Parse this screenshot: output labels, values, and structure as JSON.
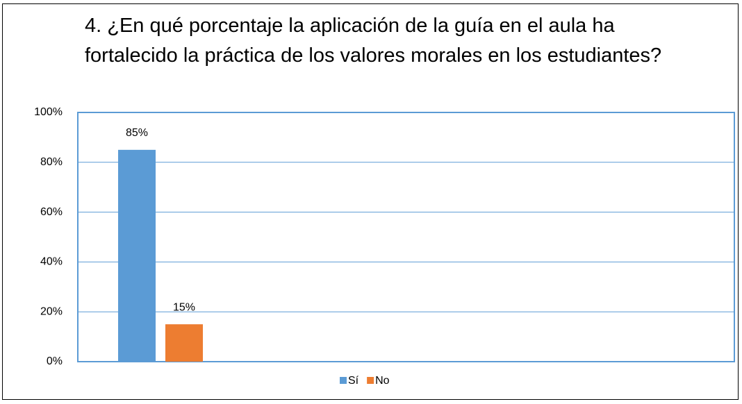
{
  "chart_data": {
    "type": "bar",
    "title": "4. ¿En qué porcentaje la aplicación de la guía en el aula ha fortalecido la práctica de los valores morales en los estudiantes?",
    "categories": [
      null
    ],
    "series": [
      {
        "name": "Sí",
        "color": "#5b9bd5",
        "values": [
          85
        ],
        "value_labels": [
          "85%"
        ]
      },
      {
        "name": "No",
        "color": "#ed7d31",
        "values": [
          15
        ],
        "value_labels": [
          "15%"
        ]
      }
    ],
    "ylim": [
      0,
      100
    ],
    "yticks": [
      {
        "value": 0,
        "label": "0%"
      },
      {
        "value": 20,
        "label": "20%"
      },
      {
        "value": 40,
        "label": "40%"
      },
      {
        "value": 60,
        "label": "60%"
      },
      {
        "value": 80,
        "label": "80%"
      },
      {
        "value": 100,
        "label": "100%"
      }
    ],
    "grid": true,
    "legend": "bottom"
  }
}
